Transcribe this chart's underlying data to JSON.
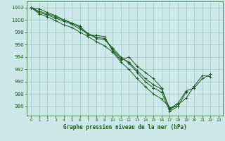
{
  "background_color": "#cce8e8",
  "grid_color": "#aacccc",
  "line_color": "#1a5c1a",
  "title": "Graphe pression niveau de la mer (hPa)",
  "xlim": [
    -0.5,
    23.5
  ],
  "ylim": [
    984.5,
    1003.0
  ],
  "yticks": [
    986,
    988,
    990,
    992,
    994,
    996,
    998,
    1000,
    1002
  ],
  "xticks": [
    0,
    1,
    2,
    3,
    4,
    5,
    6,
    7,
    8,
    9,
    10,
    11,
    12,
    13,
    14,
    15,
    16,
    17,
    18,
    19,
    20,
    21,
    22,
    23
  ],
  "series": [
    {
      "x": [
        0,
        1,
        2,
        3,
        4,
        5,
        6,
        7,
        8,
        9,
        10,
        11,
        12,
        13,
        14,
        15,
        16,
        17,
        18,
        19,
        20,
        21,
        22
      ],
      "y": [
        1002,
        1001.4,
        1001.0,
        1000.5,
        1000.0,
        999.5,
        999.0,
        997.5,
        997.5,
        997.3,
        995.0,
        993.5,
        994.0,
        992.5,
        991.5,
        990.5,
        989.0,
        985.5,
        986.3,
        987.3,
        989.3,
        991.0,
        990.8
      ]
    },
    {
      "x": [
        0,
        1,
        2,
        3,
        4,
        5,
        6,
        7,
        8,
        9,
        10,
        11,
        12,
        13,
        14,
        15,
        16,
        17,
        18,
        19
      ],
      "y": [
        1002,
        1001.2,
        1000.8,
        1000.3,
        999.8,
        999.3,
        998.5,
        997.8,
        997.0,
        996.8,
        995.5,
        994.0,
        993.0,
        991.5,
        990.0,
        989.0,
        988.3,
        985.2,
        986.0,
        988.3
      ]
    },
    {
      "x": [
        0,
        1,
        2,
        3,
        4,
        5,
        6,
        7,
        8,
        9,
        10,
        11,
        12,
        13,
        14,
        15,
        16,
        17,
        18
      ],
      "y": [
        1002,
        1001.0,
        1000.5,
        999.9,
        999.2,
        998.8,
        998.0,
        997.3,
        996.5,
        995.8,
        994.8,
        993.2,
        992.0,
        990.5,
        989.2,
        988.0,
        987.2,
        985.8,
        986.0
      ]
    },
    {
      "x": [
        0,
        1,
        2,
        3,
        4,
        5,
        6,
        7,
        8,
        9,
        10,
        11,
        12,
        13,
        14,
        15,
        16,
        17,
        18,
        19,
        20,
        21,
        22
      ],
      "y": [
        1002,
        1001.8,
        1001.2,
        1000.7,
        1000.0,
        999.5,
        998.8,
        997.8,
        997.2,
        997.0,
        995.2,
        993.8,
        993.2,
        991.8,
        990.5,
        989.5,
        988.8,
        985.6,
        986.5,
        988.5,
        989.0,
        990.5,
        991.2
      ]
    }
  ]
}
